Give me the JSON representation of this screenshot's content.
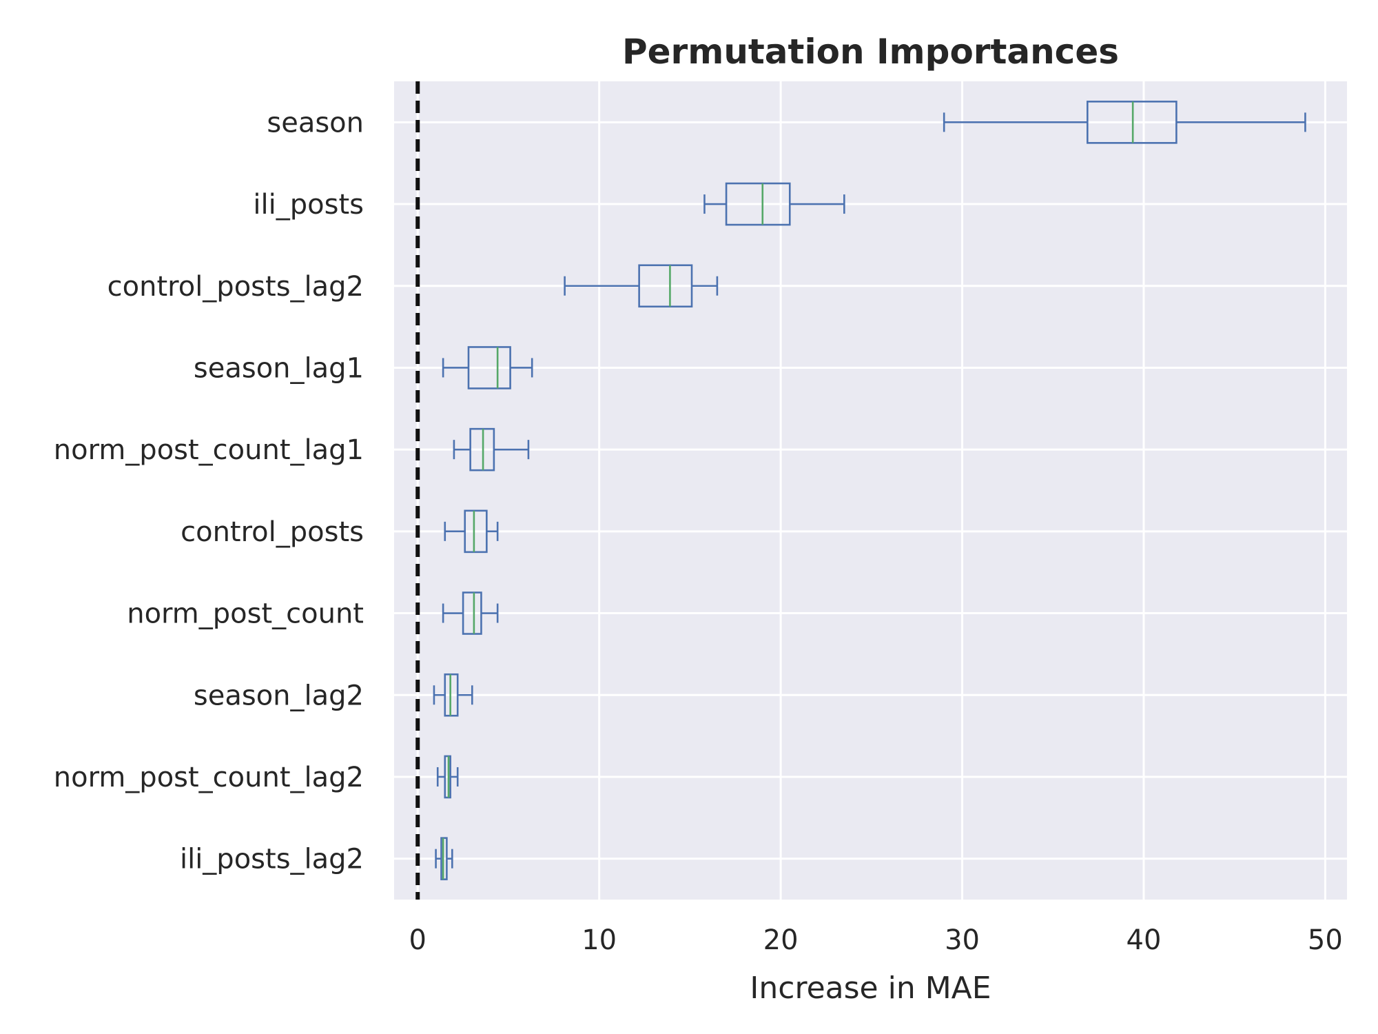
{
  "chart_data": {
    "type": "box",
    "orientation": "horizontal",
    "title": "Permutation Importances",
    "xlabel": "Increase in MAE",
    "ylabel": "",
    "xlim": [
      -1.3,
      51.2
    ],
    "xticks": [
      0,
      10,
      20,
      30,
      40,
      50
    ],
    "grid": true,
    "reference_line": {
      "x": 0,
      "style": "dashed",
      "color": "#111111"
    },
    "colors": {
      "background": "#eaeaf2",
      "grid": "#ffffff",
      "box": "#4c72b0",
      "median": "#55a868",
      "text": "#262626"
    },
    "categories": [
      "season",
      "ili_posts",
      "control_posts_lag2",
      "season_lag1",
      "norm_post_count_lag1",
      "control_posts",
      "norm_post_count",
      "season_lag2",
      "norm_post_count_lag2",
      "ili_posts_lag2"
    ],
    "boxes": [
      {
        "label": "season",
        "whisker_low": 29.0,
        "q1": 36.9,
        "median": 39.4,
        "q3": 41.8,
        "whisker_high": 48.9
      },
      {
        "label": "ili_posts",
        "whisker_low": 15.8,
        "q1": 17.0,
        "median": 19.0,
        "q3": 20.5,
        "whisker_high": 23.5
      },
      {
        "label": "control_posts_lag2",
        "whisker_low": 8.1,
        "q1": 12.2,
        "median": 13.9,
        "q3": 15.1,
        "whisker_high": 16.5
      },
      {
        "label": "season_lag1",
        "whisker_low": 1.4,
        "q1": 2.8,
        "median": 4.4,
        "q3": 5.1,
        "whisker_high": 6.3
      },
      {
        "label": "norm_post_count_lag1",
        "whisker_low": 2.0,
        "q1": 2.9,
        "median": 3.6,
        "q3": 4.2,
        "whisker_high": 6.1
      },
      {
        "label": "control_posts",
        "whisker_low": 1.5,
        "q1": 2.6,
        "median": 3.1,
        "q3": 3.8,
        "whisker_high": 4.4
      },
      {
        "label": "norm_post_count",
        "whisker_low": 1.4,
        "q1": 2.5,
        "median": 3.1,
        "q3": 3.5,
        "whisker_high": 4.4
      },
      {
        "label": "season_lag2",
        "whisker_low": 0.9,
        "q1": 1.5,
        "median": 1.8,
        "q3": 2.2,
        "whisker_high": 3.0
      },
      {
        "label": "norm_post_count_lag2",
        "whisker_low": 1.1,
        "q1": 1.5,
        "median": 1.7,
        "q3": 1.8,
        "whisker_high": 2.2
      },
      {
        "label": "ili_posts_lag2",
        "whisker_low": 1.0,
        "q1": 1.3,
        "median": 1.4,
        "q3": 1.6,
        "whisker_high": 1.9
      }
    ]
  }
}
